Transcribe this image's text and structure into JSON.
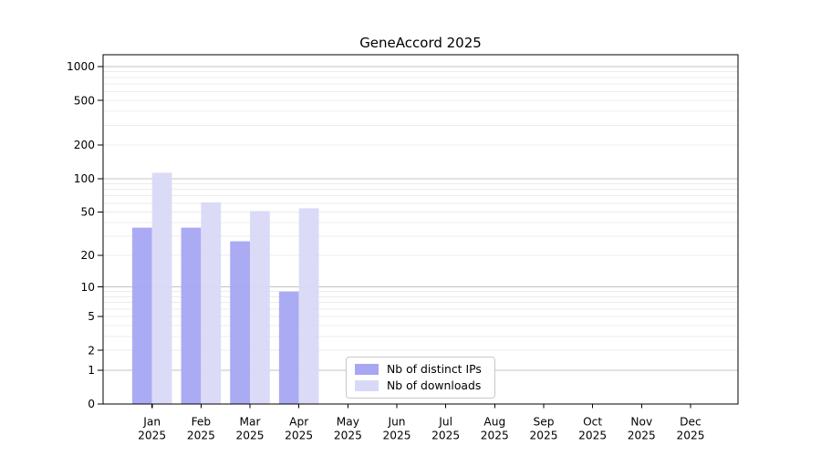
{
  "window": {
    "background": "#ffffff"
  },
  "chart_data": {
    "type": "bar",
    "title": "GeneAccord 2025",
    "x_ticks": [
      [
        "Jan",
        "2025"
      ],
      [
        "Feb",
        "2025"
      ],
      [
        "Mar",
        "2025"
      ],
      [
        "Apr",
        "2025"
      ],
      [
        "May",
        "2025"
      ],
      [
        "Jun",
        "2025"
      ],
      [
        "Jul",
        "2025"
      ],
      [
        "Aug",
        "2025"
      ],
      [
        "Sep",
        "2025"
      ],
      [
        "Oct",
        "2025"
      ],
      [
        "Nov",
        "2025"
      ],
      [
        "Dec",
        "2025"
      ]
    ],
    "series": [
      {
        "name": "Nb of distinct IPs",
        "color": "#a7a7f3",
        "values": [
          36,
          36,
          27,
          9,
          0,
          0,
          0,
          0,
          0,
          0,
          0,
          0
        ]
      },
      {
        "name": "Nb of downloads",
        "color": "#d9d9f7",
        "values": [
          113,
          61,
          51,
          54,
          0,
          0,
          0,
          0,
          0,
          0,
          0,
          0
        ]
      }
    ],
    "y_axis": {
      "scale": "log10(value+1)",
      "tick_labels": [
        "0",
        "1",
        "2",
        "5",
        "10",
        "20",
        "50",
        "100",
        "200",
        "500",
        "1000"
      ],
      "tick_values": [
        0,
        1,
        2,
        5,
        10,
        20,
        50,
        100,
        200,
        500,
        1000
      ],
      "major_gridlines": [
        1,
        10,
        100,
        1000
      ],
      "minor_gridlines": [
        2,
        3,
        4,
        5,
        6,
        7,
        8,
        9,
        20,
        30,
        40,
        50,
        60,
        70,
        80,
        90,
        200,
        300,
        400,
        500,
        600,
        700,
        800,
        900
      ],
      "top_value": 1275
    },
    "legend": {
      "position": "inside-bottom-center"
    },
    "grid_colors": {
      "minor": "#ececec",
      "major": "#c3c3c3"
    },
    "axis_color": "#000000"
  }
}
